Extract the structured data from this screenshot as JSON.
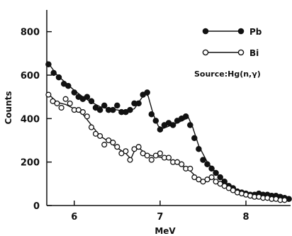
{
  "chart_data": {
    "type": "scatter",
    "xlabel": "MeV",
    "ylabel": "Counts",
    "xlim": [
      5.68,
      8.52
    ],
    "ylim": [
      0,
      900
    ],
    "xticks": [
      6,
      7,
      8
    ],
    "yticks": [
      0,
      200,
      400,
      600,
      800
    ],
    "xtick_labels": [
      "6",
      "7",
      "8"
    ],
    "ytick_labels": [
      "0",
      "200",
      "400",
      "600",
      "800"
    ],
    "grid": false,
    "legend_position": "top-right",
    "annotation": "Source:Hg(n,γ)",
    "series": [
      {
        "name": "Pb",
        "marker": "filled-circle",
        "color": "#111111",
        "points": [
          [
            5.7,
            650
          ],
          [
            5.76,
            610
          ],
          [
            5.82,
            590
          ],
          [
            5.88,
            560
          ],
          [
            5.93,
            550
          ],
          [
            6.0,
            520
          ],
          [
            6.05,
            500
          ],
          [
            6.1,
            490
          ],
          [
            6.15,
            500
          ],
          [
            6.2,
            480
          ],
          [
            6.25,
            450
          ],
          [
            6.3,
            440
          ],
          [
            6.35,
            460
          ],
          [
            6.4,
            440
          ],
          [
            6.45,
            440
          ],
          [
            6.5,
            460
          ],
          [
            6.55,
            430
          ],
          [
            6.6,
            430
          ],
          [
            6.65,
            440
          ],
          [
            6.7,
            470
          ],
          [
            6.75,
            470
          ],
          [
            6.8,
            510
          ],
          [
            6.85,
            520
          ],
          [
            6.9,
            420
          ],
          [
            6.95,
            390
          ],
          [
            7.0,
            350
          ],
          [
            7.05,
            370
          ],
          [
            7.1,
            380
          ],
          [
            7.15,
            370
          ],
          [
            7.2,
            390
          ],
          [
            7.25,
            400
          ],
          [
            7.3,
            410
          ],
          [
            7.35,
            370
          ],
          [
            7.4,
            310
          ],
          [
            7.45,
            260
          ],
          [
            7.5,
            210
          ],
          [
            7.55,
            190
          ],
          [
            7.6,
            170
          ],
          [
            7.65,
            150
          ],
          [
            7.7,
            130
          ],
          [
            7.75,
            110
          ],
          [
            7.8,
            90
          ],
          [
            7.85,
            80
          ],
          [
            7.9,
            65
          ],
          [
            7.95,
            60
          ],
          [
            8.0,
            55
          ],
          [
            8.05,
            50
          ],
          [
            8.1,
            50
          ],
          [
            8.15,
            55
          ],
          [
            8.2,
            50
          ],
          [
            8.25,
            50
          ],
          [
            8.3,
            45
          ],
          [
            8.35,
            45
          ],
          [
            8.4,
            40
          ],
          [
            8.45,
            35
          ],
          [
            8.5,
            30
          ]
        ],
        "curve": [
          [
            5.68,
            665
          ],
          [
            5.8,
            600
          ],
          [
            5.9,
            565
          ],
          [
            6.0,
            530
          ],
          [
            6.1,
            500
          ],
          [
            6.2,
            475
          ],
          [
            6.3,
            455
          ],
          [
            6.4,
            445
          ],
          [
            6.5,
            440
          ],
          [
            6.6,
            432
          ],
          [
            6.7,
            445
          ],
          [
            6.76,
            480
          ],
          [
            6.82,
            515
          ],
          [
            6.86,
            505
          ],
          [
            6.92,
            420
          ],
          [
            6.98,
            365
          ],
          [
            7.04,
            355
          ],
          [
            7.1,
            365
          ],
          [
            7.2,
            380
          ],
          [
            7.28,
            395
          ],
          [
            7.33,
            405
          ],
          [
            7.38,
            360
          ],
          [
            7.45,
            275
          ],
          [
            7.55,
            200
          ],
          [
            7.65,
            150
          ],
          [
            7.75,
            110
          ],
          [
            7.85,
            80
          ],
          [
            7.95,
            60
          ],
          [
            8.1,
            50
          ],
          [
            8.3,
            45
          ],
          [
            8.5,
            30
          ]
        ]
      },
      {
        "name": "Bi",
        "marker": "open-circle",
        "color": "#111111",
        "points": [
          [
            5.7,
            510
          ],
          [
            5.75,
            480
          ],
          [
            5.8,
            470
          ],
          [
            5.85,
            450
          ],
          [
            5.9,
            490
          ],
          [
            5.95,
            470
          ],
          [
            6.0,
            440
          ],
          [
            6.05,
            440
          ],
          [
            6.1,
            430
          ],
          [
            6.15,
            410
          ],
          [
            6.2,
            360
          ],
          [
            6.25,
            330
          ],
          [
            6.3,
            320
          ],
          [
            6.35,
            280
          ],
          [
            6.4,
            300
          ],
          [
            6.45,
            290
          ],
          [
            6.5,
            270
          ],
          [
            6.55,
            240
          ],
          [
            6.6,
            250
          ],
          [
            6.65,
            210
          ],
          [
            6.7,
            260
          ],
          [
            6.75,
            270
          ],
          [
            6.8,
            240
          ],
          [
            6.85,
            230
          ],
          [
            6.9,
            210
          ],
          [
            6.95,
            230
          ],
          [
            7.0,
            240
          ],
          [
            7.05,
            220
          ],
          [
            7.1,
            220
          ],
          [
            7.15,
            200
          ],
          [
            7.2,
            200
          ],
          [
            7.25,
            190
          ],
          [
            7.3,
            170
          ],
          [
            7.35,
            170
          ],
          [
            7.4,
            130
          ],
          [
            7.45,
            120
          ],
          [
            7.5,
            110
          ],
          [
            7.55,
            120
          ],
          [
            7.6,
            130
          ],
          [
            7.65,
            110
          ],
          [
            7.7,
            100
          ],
          [
            7.75,
            90
          ],
          [
            7.8,
            80
          ],
          [
            7.85,
            70
          ],
          [
            7.9,
            60
          ],
          [
            7.95,
            55
          ],
          [
            8.0,
            50
          ],
          [
            8.05,
            45
          ],
          [
            8.1,
            40
          ],
          [
            8.15,
            40
          ],
          [
            8.2,
            35
          ],
          [
            8.25,
            35
          ],
          [
            8.3,
            30
          ],
          [
            8.35,
            30
          ],
          [
            8.4,
            25
          ],
          [
            8.45,
            25
          ]
        ],
        "curve": [
          [
            5.68,
            520
          ],
          [
            5.8,
            475
          ],
          [
            5.9,
            465
          ],
          [
            6.0,
            445
          ],
          [
            6.1,
            420
          ],
          [
            6.2,
            370
          ],
          [
            6.3,
            320
          ],
          [
            6.4,
            295
          ],
          [
            6.5,
            265
          ],
          [
            6.6,
            240
          ],
          [
            6.66,
            215
          ],
          [
            6.7,
            250
          ],
          [
            6.75,
            265
          ],
          [
            6.85,
            235
          ],
          [
            6.95,
            225
          ],
          [
            7.05,
            220
          ],
          [
            7.15,
            205
          ],
          [
            7.25,
            185
          ],
          [
            7.35,
            160
          ],
          [
            7.45,
            120
          ],
          [
            7.55,
            115
          ],
          [
            7.62,
            125
          ],
          [
            7.7,
            100
          ],
          [
            7.8,
            80
          ],
          [
            7.9,
            60
          ],
          [
            8.0,
            50
          ],
          [
            8.1,
            42
          ],
          [
            8.25,
            35
          ],
          [
            8.45,
            25
          ]
        ]
      }
    ]
  }
}
